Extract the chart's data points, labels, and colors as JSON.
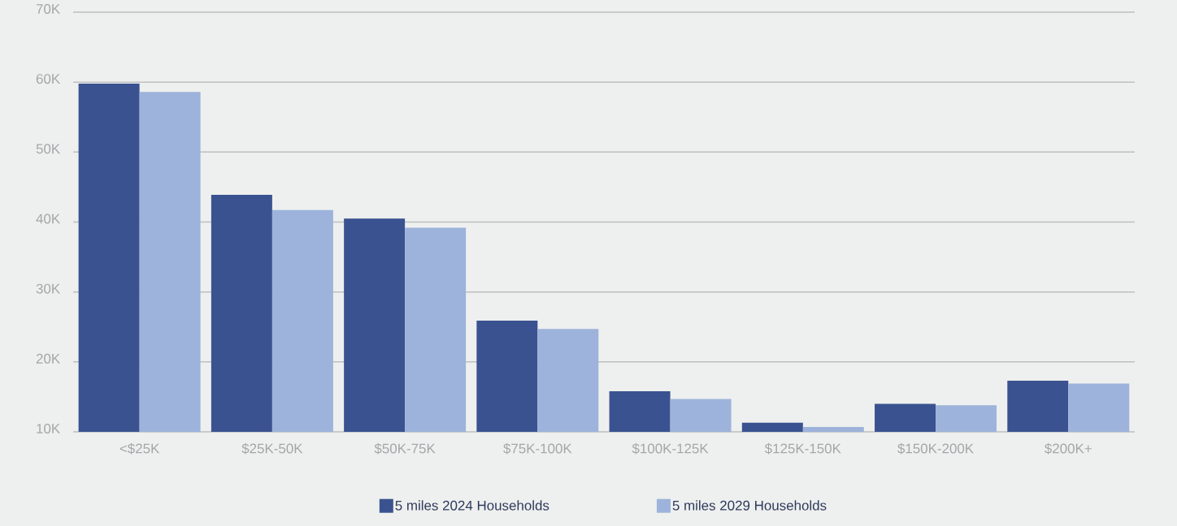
{
  "chart_data": {
    "type": "bar",
    "categories": [
      "<$25K",
      "$25K-50K",
      "$50K-75K",
      "$75K-100K",
      "$100K-125K",
      "$125K-150K",
      "$150K-200K",
      "$200K+"
    ],
    "series": [
      {
        "name": "5 miles 2024 Households",
        "color": "#3a5290",
        "values": [
          59800,
          43900,
          40500,
          25900,
          15800,
          11300,
          14000,
          17300
        ]
      },
      {
        "name": "5 miles 2029 Households",
        "color": "#9db3db",
        "values": [
          58600,
          41700,
          39200,
          24700,
          14700,
          10700,
          13800,
          16900
        ]
      }
    ],
    "ylim": [
      10000,
      70000
    ],
    "yticks": [
      {
        "value": 10000,
        "label": "10K"
      },
      {
        "value": 20000,
        "label": "20K"
      },
      {
        "value": 30000,
        "label": "30K"
      },
      {
        "value": 40000,
        "label": "40K"
      },
      {
        "value": 50000,
        "label": "50K"
      },
      {
        "value": 60000,
        "label": "60K"
      },
      {
        "value": 70000,
        "label": "70K"
      }
    ],
    "grid": "y",
    "legend": "bottom"
  }
}
